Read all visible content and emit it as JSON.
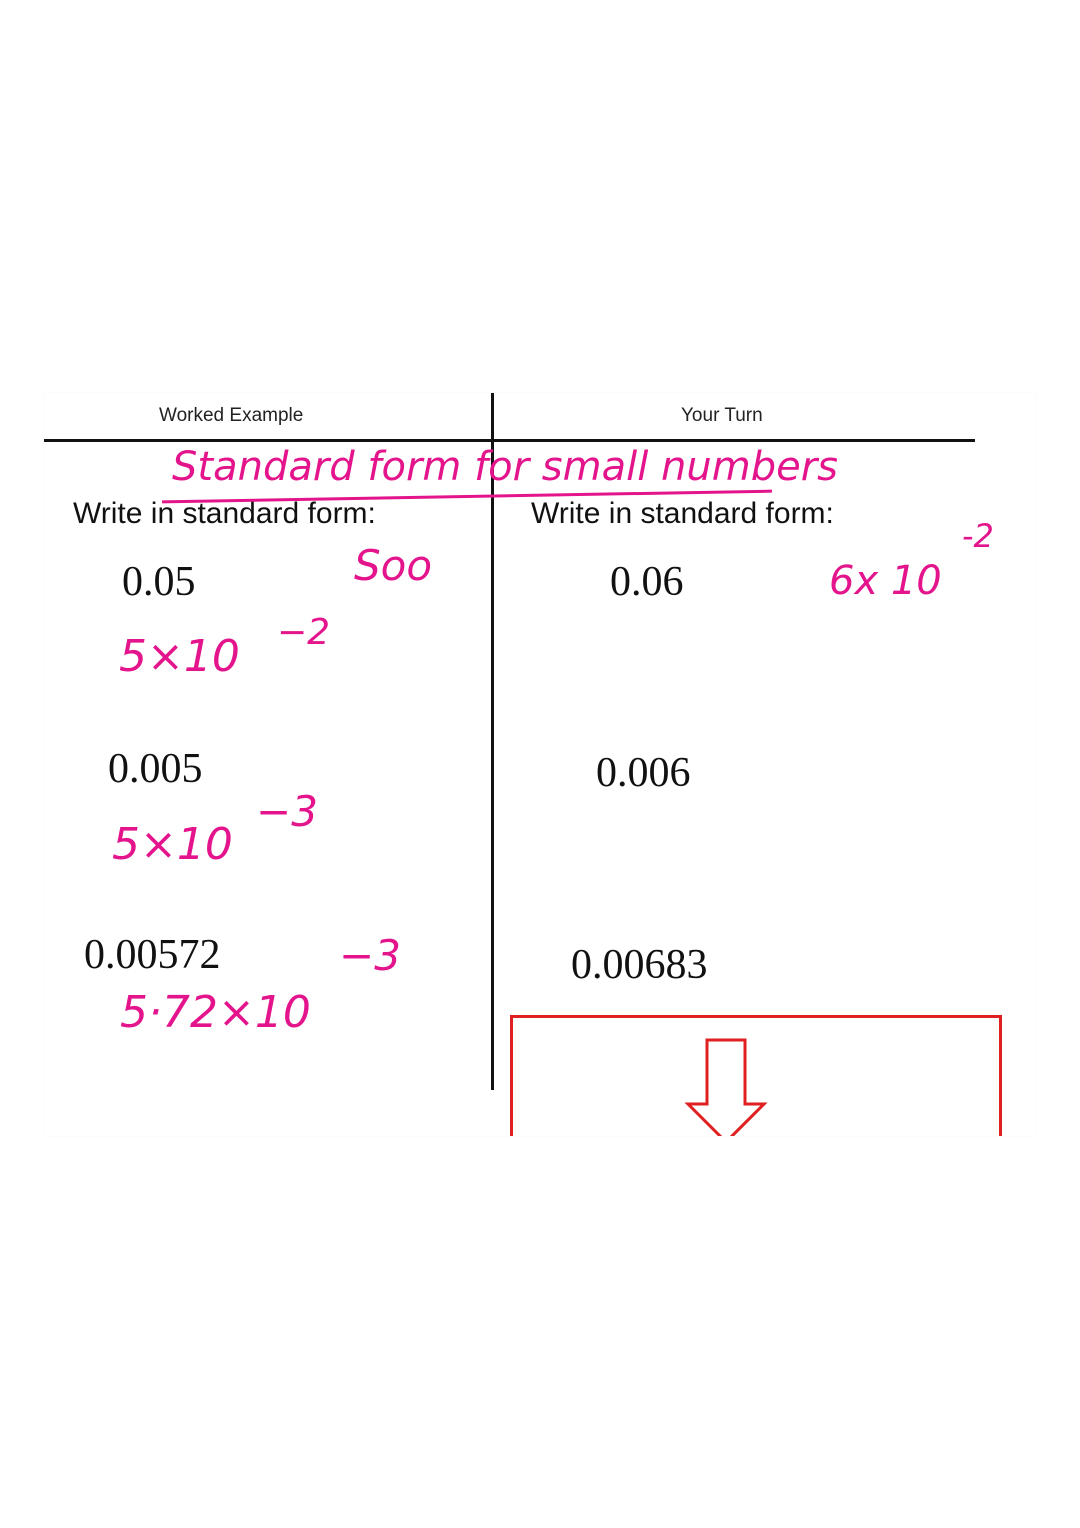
{
  "header": {
    "left": "Worked Example",
    "right": "Your Turn"
  },
  "annotation_title": "Standard form for small numbers",
  "left": {
    "prompt": "Write in standard form:",
    "items": [
      {
        "number": "0.05",
        "answer": "5×10",
        "exponent": "−2"
      },
      {
        "number": "0.005",
        "answer": "5×10",
        "exponent": "−3"
      },
      {
        "number": "0.00572",
        "answer": "5·72×10",
        "exponent": "−3"
      }
    ],
    "note": "Soo"
  },
  "right": {
    "prompt": "Write in standard form:",
    "items": [
      {
        "number": "0.06",
        "answer": "6x 10",
        "exponent": "-2"
      },
      {
        "number": "0.006"
      },
      {
        "number": "0.00683"
      }
    ]
  },
  "colors": {
    "ink": "#e4148c",
    "box": "#e02020"
  }
}
